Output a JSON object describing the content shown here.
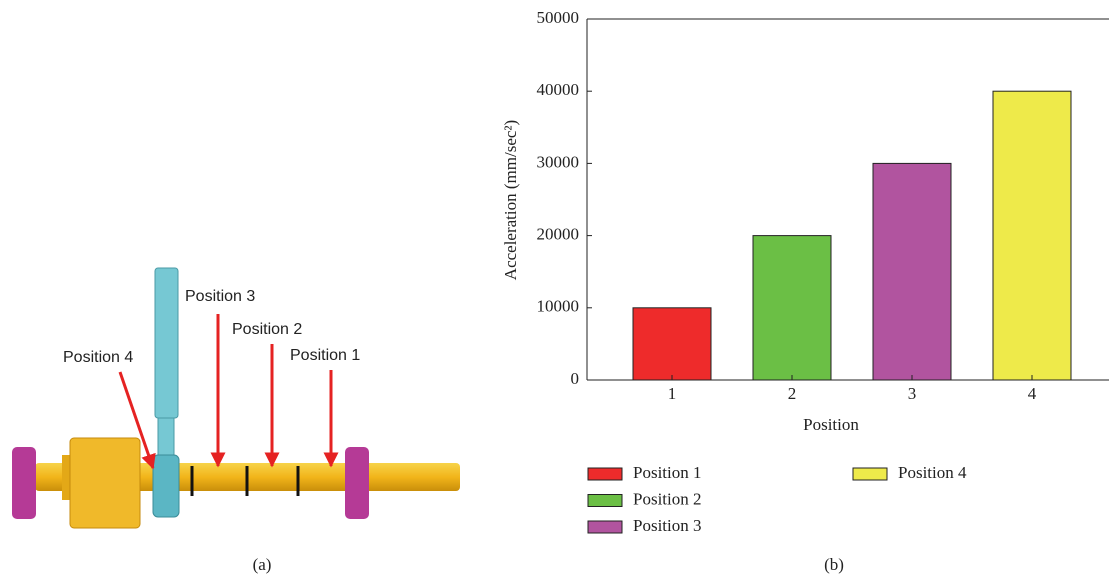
{
  "illustration": {
    "labels": [
      "Position 4",
      "Position 3",
      "Position 2",
      "Position 1"
    ],
    "caption": "(a)"
  },
  "chart_data": {
    "type": "bar",
    "caption": "(b)",
    "xlabel": "Position",
    "ylabel": "Acceleration (mm/sec²)",
    "categories": [
      "1",
      "2",
      "3",
      "4"
    ],
    "values": [
      10000,
      20000,
      30000,
      40000
    ],
    "colors": [
      "#ee2b2b",
      "#6bbf45",
      "#b1549f",
      "#eeea4a"
    ],
    "legend": [
      "Position 1",
      "Position 2",
      "Position 3",
      "Position 4"
    ],
    "ylim": [
      0,
      50000
    ],
    "yticks": [
      0,
      10000,
      20000,
      30000,
      40000,
      50000
    ]
  }
}
